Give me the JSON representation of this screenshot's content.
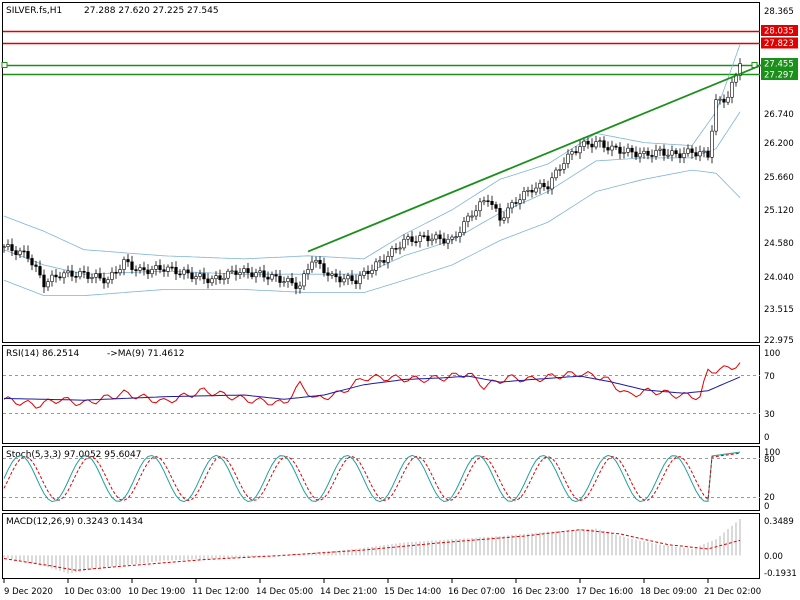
{
  "header": {
    "symbol": "SILVER.fs,H1",
    "ohlc": "27.288 27.620 27.225 27.545"
  },
  "chart_data": {
    "type": "candlestick",
    "price_axis": {
      "ticks": [
        "28.365",
        "27.823",
        "27.297",
        "26.740",
        "26.200",
        "25.660",
        "25.120",
        "24.580",
        "24.040",
        "23.515",
        "22.975"
      ],
      "range": [
        22.975,
        28.365
      ]
    },
    "price_tags": [
      {
        "value": "28.035",
        "color": "#e00000"
      },
      {
        "value": "27.823",
        "color": "#e00000"
      },
      {
        "value": "27.455",
        "color": "#1a8f1a"
      },
      {
        "value": "27.297",
        "color": "#1a8f1a"
      }
    ],
    "horizontal_levels": [
      {
        "price": 28.035,
        "color": "#e00000"
      },
      {
        "price": 27.823,
        "color": "#e00000"
      },
      {
        "price": 27.455,
        "color": "#1a8f1a"
      },
      {
        "price": 27.297,
        "color": "#1a8f1a"
      }
    ],
    "trendline": {
      "from": {
        "bar": 76,
        "price": 24.42
      },
      "to": {
        "bar": 184,
        "price": 27.45
      },
      "color": "#1a8f1a"
    },
    "close_path": [
      [
        0,
        24.5
      ],
      [
        6,
        24.35
      ],
      [
        10,
        23.9
      ],
      [
        14,
        24.05
      ],
      [
        20,
        24.05
      ],
      [
        26,
        23.95
      ],
      [
        30,
        24.25
      ],
      [
        34,
        24.1
      ],
      [
        40,
        24.15
      ],
      [
        46,
        24.05
      ],
      [
        52,
        23.95
      ],
      [
        58,
        24.1
      ],
      [
        64,
        24.05
      ],
      [
        70,
        23.95
      ],
      [
        74,
        23.85
      ],
      [
        77,
        24.3
      ],
      [
        82,
        24.0
      ],
      [
        88,
        23.95
      ],
      [
        92,
        24.15
      ],
      [
        96,
        24.35
      ],
      [
        100,
        24.6
      ],
      [
        106,
        24.65
      ],
      [
        112,
        24.6
      ],
      [
        117,
        25.05
      ],
      [
        121,
        25.3
      ],
      [
        124,
        24.95
      ],
      [
        128,
        25.25
      ],
      [
        132,
        25.45
      ],
      [
        136,
        25.5
      ],
      [
        140,
        25.9
      ],
      [
        144,
        26.15
      ],
      [
        148,
        26.2
      ],
      [
        152,
        26.1
      ],
      [
        156,
        26.05
      ],
      [
        160,
        26.0
      ],
      [
        164,
        26.05
      ],
      [
        168,
        26.0
      ],
      [
        172,
        26.05
      ],
      [
        176,
        26.0
      ],
      [
        178,
        26.85
      ],
      [
        181,
        26.95
      ],
      [
        183,
        27.3
      ],
      [
        184,
        27.55
      ]
    ],
    "bollinger": {
      "upper": [
        [
          0,
          25.0
        ],
        [
          10,
          24.75
        ],
        [
          20,
          24.45
        ],
        [
          40,
          24.35
        ],
        [
          60,
          24.3
        ],
        [
          76,
          24.35
        ],
        [
          90,
          24.3
        ],
        [
          100,
          24.7
        ],
        [
          112,
          25.1
        ],
        [
          124,
          25.6
        ],
        [
          136,
          25.85
        ],
        [
          148,
          26.35
        ],
        [
          160,
          26.2
        ],
        [
          172,
          26.15
        ],
        [
          178,
          26.7
        ],
        [
          184,
          27.8
        ]
      ],
      "middle": [
        [
          0,
          24.45
        ],
        [
          10,
          24.2
        ],
        [
          20,
          24.05
        ],
        [
          40,
          24.1
        ],
        [
          60,
          24.05
        ],
        [
          76,
          24.05
        ],
        [
          90,
          24.05
        ],
        [
          100,
          24.35
        ],
        [
          112,
          24.6
        ],
        [
          124,
          25.05
        ],
        [
          136,
          25.4
        ],
        [
          148,
          25.9
        ],
        [
          160,
          25.95
        ],
        [
          172,
          25.95
        ],
        [
          178,
          26.1
        ],
        [
          184,
          26.7
        ]
      ],
      "lower": [
        [
          0,
          23.95
        ],
        [
          10,
          23.7
        ],
        [
          20,
          23.7
        ],
        [
          40,
          23.8
        ],
        [
          60,
          23.8
        ],
        [
          76,
          23.75
        ],
        [
          90,
          23.75
        ],
        [
          100,
          23.95
        ],
        [
          112,
          24.2
        ],
        [
          124,
          24.6
        ],
        [
          136,
          24.9
        ],
        [
          148,
          25.4
        ],
        [
          160,
          25.6
        ],
        [
          172,
          25.75
        ],
        [
          178,
          25.7
        ],
        [
          184,
          25.3
        ]
      ]
    },
    "x_axis": {
      "labels": [
        "9 Dec 2020",
        "10 Dec 03:00",
        "10 Dec 19:00",
        "11 Dec 12:00",
        "14 Dec 05:00",
        "14 Dec 21:00",
        "15 Dec 14:00",
        "16 Dec 07:00",
        "16 Dec 23:00",
        "17 Dec 16:00",
        "18 Dec 09:00",
        "21 Dec 02:00"
      ],
      "label_bars": [
        0,
        16,
        32,
        48,
        64,
        80,
        96,
        112,
        128,
        144,
        160,
        176
      ]
    },
    "rsi": {
      "title": "RSI(14) 86.2514",
      "ma_label": "->MA(9) 71.4612",
      "ticks": [
        "100",
        "70",
        "30",
        "0"
      ],
      "rsi_path": [
        [
          0,
          45
        ],
        [
          8,
          38
        ],
        [
          14,
          45
        ],
        [
          20,
          40
        ],
        [
          30,
          52
        ],
        [
          40,
          42
        ],
        [
          50,
          55
        ],
        [
          60,
          45
        ],
        [
          70,
          40
        ],
        [
          74,
          62
        ],
        [
          78,
          45
        ],
        [
          84,
          52
        ],
        [
          90,
          70
        ],
        [
          96,
          70
        ],
        [
          104,
          68
        ],
        [
          110,
          70
        ],
        [
          116,
          75
        ],
        [
          120,
          60
        ],
        [
          126,
          70
        ],
        [
          132,
          68
        ],
        [
          138,
          72
        ],
        [
          144,
          75
        ],
        [
          150,
          70
        ],
        [
          156,
          50
        ],
        [
          162,
          55
        ],
        [
          168,
          50
        ],
        [
          174,
          48
        ],
        [
          176,
          78
        ],
        [
          180,
          80
        ],
        [
          184,
          86
        ]
      ],
      "ma_path": [
        [
          0,
          46
        ],
        [
          20,
          44
        ],
        [
          40,
          48
        ],
        [
          60,
          50
        ],
        [
          70,
          45
        ],
        [
          80,
          50
        ],
        [
          90,
          62
        ],
        [
          100,
          68
        ],
        [
          110,
          70
        ],
        [
          116,
          72
        ],
        [
          124,
          65
        ],
        [
          132,
          68
        ],
        [
          144,
          72
        ],
        [
          152,
          65
        ],
        [
          160,
          56
        ],
        [
          170,
          52
        ],
        [
          176,
          55
        ],
        [
          184,
          71
        ]
      ]
    },
    "stoch": {
      "title": "Stoch(5,3,3) 97.0052 95.6047",
      "ticks": [
        "100",
        "80",
        "20",
        "0"
      ]
    },
    "macd": {
      "title": "MACD(12,26,9) 0.3243 0.1434",
      "ticks": [
        "0.3489",
        "0.00",
        "-0.1931"
      ],
      "hist_path": [
        [
          0,
          -0.02
        ],
        [
          10,
          -0.1
        ],
        [
          16,
          -0.17
        ],
        [
          24,
          -0.12
        ],
        [
          40,
          -0.05
        ],
        [
          60,
          -0.02
        ],
        [
          76,
          0.02
        ],
        [
          88,
          0.06
        ],
        [
          100,
          0.12
        ],
        [
          112,
          0.15
        ],
        [
          124,
          0.18
        ],
        [
          136,
          0.22
        ],
        [
          148,
          0.25
        ],
        [
          156,
          0.16
        ],
        [
          164,
          0.1
        ],
        [
          172,
          0.06
        ],
        [
          178,
          0.15
        ],
        [
          184,
          0.34
        ]
      ],
      "signal_path": [
        [
          0,
          -0.03
        ],
        [
          12,
          -0.1
        ],
        [
          18,
          -0.14
        ],
        [
          30,
          -0.1
        ],
        [
          50,
          -0.04
        ],
        [
          70,
          0.0
        ],
        [
          90,
          0.05
        ],
        [
          110,
          0.12
        ],
        [
          130,
          0.18
        ],
        [
          144,
          0.24
        ],
        [
          154,
          0.2
        ],
        [
          166,
          0.1
        ],
        [
          176,
          0.06
        ],
        [
          184,
          0.14
        ]
      ]
    }
  }
}
